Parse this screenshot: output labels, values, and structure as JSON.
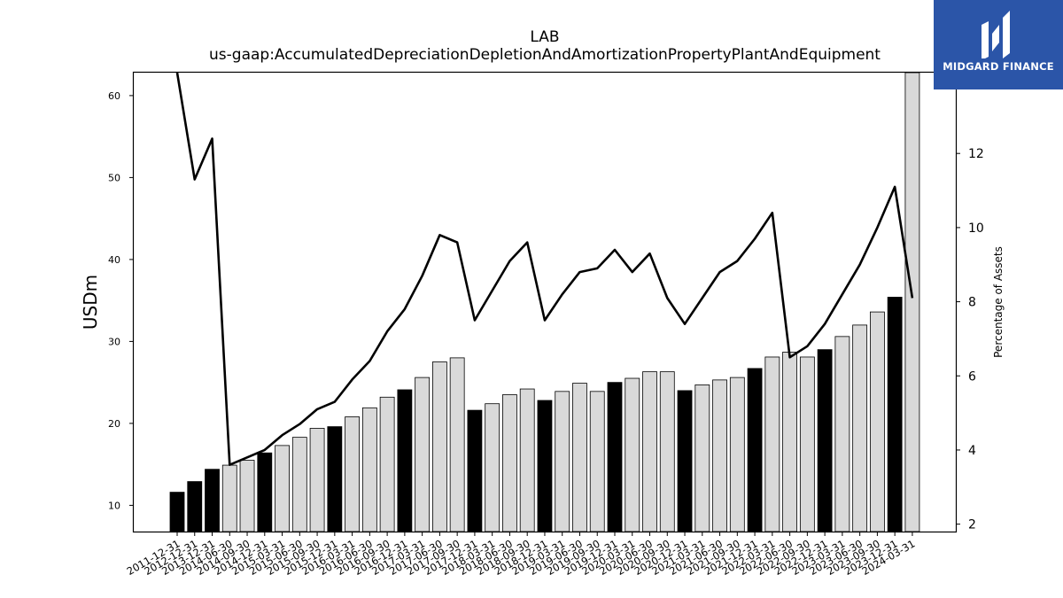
{
  "chart_data": {
    "type": "bar",
    "title": "LAB",
    "subtitle": "us-gaap:AccumulatedDepreciationDepletionAndAmortizationPropertyPlantAndEquipment",
    "ylabel": "USDm",
    "y2label": "Percentage of Assets",
    "ylim": [
      6.8,
      62.8
    ],
    "y2lim": [
      1.8,
      14.18
    ],
    "yticks": [
      10,
      20,
      30,
      40,
      50,
      60
    ],
    "y2ticks": [
      2,
      4,
      6,
      8,
      10,
      12
    ],
    "grid": false,
    "colors": {
      "annual": "#000000",
      "quarterly": "#d9d9d9",
      "line": "#000000"
    },
    "categories": [
      "2011-12-31",
      "2012-12-31",
      "2013-12-31",
      "2014-06-30",
      "2014-09-30",
      "2014-12-31",
      "2015-03-31",
      "2015-06-30",
      "2015-09-30",
      "2015-12-31",
      "2016-03-31",
      "2016-06-30",
      "2016-09-30",
      "2016-12-31",
      "2017-03-31",
      "2017-06-30",
      "2017-09-30",
      "2017-12-31",
      "2018-03-31",
      "2018-06-30",
      "2018-09-30",
      "2018-12-31",
      "2019-03-31",
      "2019-06-30",
      "2019-09-30",
      "2019-12-31",
      "2020-03-31",
      "2020-06-30",
      "2020-09-30",
      "2020-12-31",
      "2021-03-31",
      "2021-06-30",
      "2021-09-30",
      "2021-12-31",
      "2022-03-31",
      "2022-06-30",
      "2022-09-30",
      "2022-12-31",
      "2023-03-31",
      "2023-06-30",
      "2023-09-30",
      "2023-12-31",
      "2024-03-31"
    ],
    "series": [
      {
        "values": [
          11.6,
          12.9,
          14.4,
          14.9,
          15.5,
          16.4,
          17.3,
          18.3,
          19.4,
          19.6,
          20.8,
          21.9,
          23.2,
          24.1,
          25.6,
          27.5,
          28.0,
          21.6,
          22.4,
          23.5,
          24.2,
          22.8,
          23.9,
          24.9,
          23.9,
          25.0,
          25.5,
          26.3,
          26.3,
          24.0,
          24.7,
          25.3,
          25.6,
          26.7,
          28.1,
          28.7,
          28.1,
          29.0,
          30.6,
          32.0,
          33.6,
          35.4,
          62.8
        ],
        "annual": [
          true,
          true,
          true,
          false,
          false,
          true,
          false,
          false,
          false,
          true,
          false,
          false,
          false,
          true,
          false,
          false,
          false,
          true,
          false,
          false,
          false,
          true,
          false,
          false,
          false,
          true,
          false,
          false,
          false,
          true,
          false,
          false,
          false,
          true,
          false,
          false,
          false,
          true,
          false,
          false,
          false,
          true,
          false
        ]
      },
      {
        "values": [
          14.4,
          11.3,
          12.4,
          3.6,
          3.8,
          4.0,
          4.4,
          4.7,
          5.1,
          5.3,
          5.9,
          6.4,
          7.2,
          7.8,
          8.7,
          9.8,
          9.6,
          7.5,
          8.3,
          9.1,
          9.6,
          7.5,
          8.2,
          8.8,
          8.9,
          9.4,
          8.8,
          9.3,
          8.1,
          7.4,
          8.1,
          8.8,
          9.1,
          9.7,
          10.4,
          6.5,
          6.8,
          7.4,
          8.2,
          9.0,
          10.0,
          11.1,
          8.1
        ]
      }
    ]
  },
  "logo": {
    "text": "MIDGARD FINANCE",
    "icon": "midgard-logo-icon"
  }
}
